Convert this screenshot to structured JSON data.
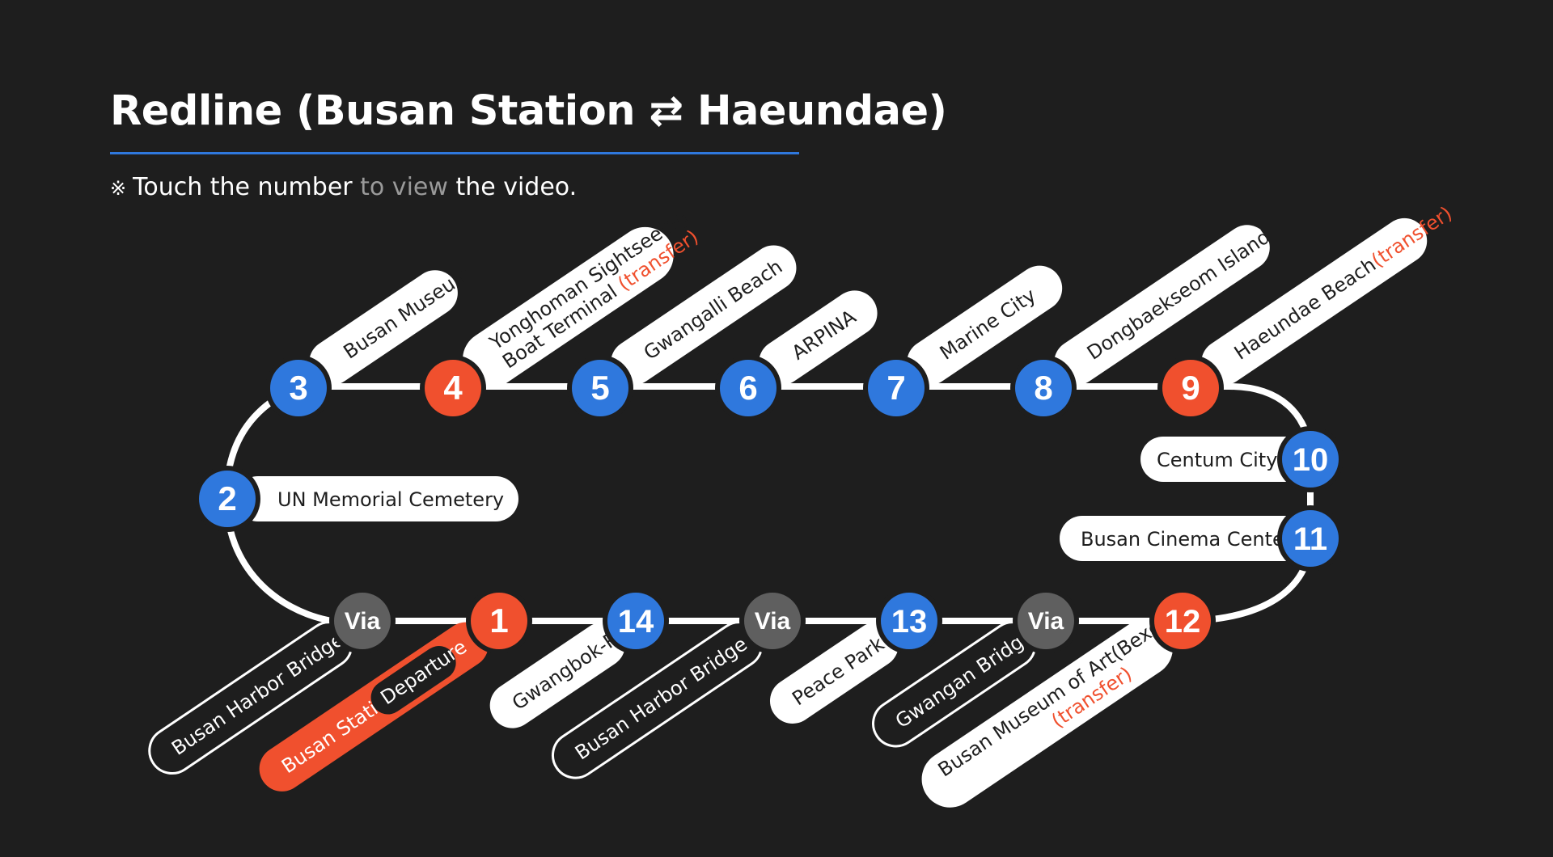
{
  "title": {
    "prefix": "Redline (Busan Station",
    "arrow": "⇄",
    "suffix": "Haeundae)"
  },
  "note": {
    "mark": "※",
    "part1": "Touch the number",
    "part2": "to view",
    "part3": "the video."
  },
  "colors": {
    "blue": "#2f78dd",
    "red": "#f0502e",
    "via": "#5f5f5f",
    "line": "#ffffff",
    "background": "#1e1e1e",
    "transfer": "#f0502e"
  },
  "stations": [
    {
      "id": "3",
      "label": "3",
      "type": "blue",
      "name": "Busan Museum"
    },
    {
      "id": "4",
      "label": "4",
      "type": "red",
      "name": "Yonghoman Sightseeing",
      "name2": "Boat Terminal",
      "tag": "(transfer)"
    },
    {
      "id": "5",
      "label": "5",
      "type": "blue",
      "name": "Gwangalli Beach"
    },
    {
      "id": "6",
      "label": "6",
      "type": "blue",
      "name": "ARPINA"
    },
    {
      "id": "7",
      "label": "7",
      "type": "blue",
      "name": "Marine City"
    },
    {
      "id": "8",
      "label": "8",
      "type": "blue",
      "name": "Dongbaekseom Island"
    },
    {
      "id": "9",
      "label": "9",
      "type": "red",
      "name": "Haeundae Beach",
      "tag": "(transfer)"
    },
    {
      "id": "10",
      "label": "10",
      "type": "blue",
      "name": "Centum City"
    },
    {
      "id": "11",
      "label": "11",
      "type": "blue",
      "name": "Busan Cinema Center"
    },
    {
      "id": "2",
      "label": "2",
      "type": "blue",
      "name": "UN Memorial Cemetery"
    },
    {
      "id": "via-a",
      "label": "Via",
      "type": "via",
      "name": "Busan Harbor Bridge"
    },
    {
      "id": "1",
      "label": "1",
      "type": "red",
      "name": "Busan Station",
      "badge": "Departure"
    },
    {
      "id": "14",
      "label": "14",
      "type": "blue",
      "name": "Gwangbok-Ro"
    },
    {
      "id": "via-b",
      "label": "Via",
      "type": "via",
      "name": "Busan Harbor Bridge"
    },
    {
      "id": "13",
      "label": "13",
      "type": "blue",
      "name": "Peace Park"
    },
    {
      "id": "via-c",
      "label": "Via",
      "type": "via",
      "name": "Gwangan Bridge"
    },
    {
      "id": "12",
      "label": "12",
      "type": "red",
      "name": "Busan Museum of Art(Bexco)",
      "tag": "(transfer)"
    }
  ]
}
